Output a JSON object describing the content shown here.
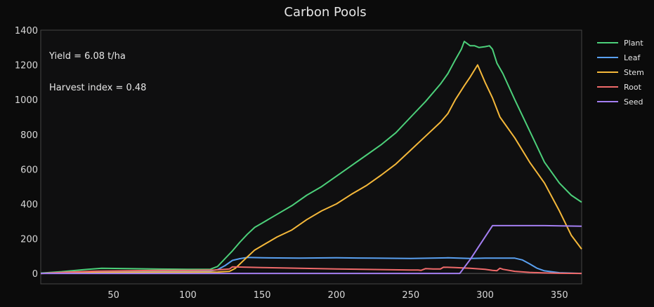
{
  "chart_data": {
    "type": "line",
    "title": "Carbon Pools",
    "xlabel": "",
    "ylabel": "",
    "xlim": [
      1,
      365
    ],
    "ylim": [
      -60,
      1400
    ],
    "xticks": [
      50,
      100,
      150,
      200,
      250,
      300,
      350
    ],
    "yticks": [
      0,
      200,
      400,
      600,
      800,
      1000,
      1200,
      1400
    ],
    "grid": false,
    "legend_position": "right",
    "annotations": [
      "Yield = 6.08 t/ha",
      "Harvest index = 0.48"
    ],
    "series": [
      {
        "name": "Plant",
        "color": "#4cd07a",
        "x": [
          1,
          15,
          30,
          42,
          60,
          80,
          100,
          115,
          120,
          125,
          130,
          135,
          140,
          145,
          150,
          160,
          170,
          180,
          190,
          200,
          210,
          220,
          230,
          240,
          250,
          260,
          270,
          275,
          280,
          284,
          286,
          290,
          293,
          296,
          300,
          303,
          305,
          308,
          312,
          320,
          330,
          340,
          350,
          358,
          365
        ],
        "y": [
          2,
          10,
          22,
          30,
          28,
          25,
          24,
          24,
          40,
          85,
          130,
          180,
          225,
          265,
          290,
          340,
          390,
          450,
          500,
          560,
          620,
          680,
          740,
          810,
          900,
          990,
          1090,
          1150,
          1230,
          1290,
          1335,
          1310,
          1310,
          1300,
          1305,
          1310,
          1290,
          1210,
          1150,
          1000,
          820,
          640,
          520,
          450,
          410
        ]
      },
      {
        "name": "Leaf",
        "color": "#5aa0f0",
        "x": [
          1,
          20,
          40,
          60,
          80,
          100,
          115,
          120,
          125,
          130,
          135,
          140,
          150,
          175,
          200,
          225,
          250,
          275,
          290,
          300,
          310,
          320,
          325,
          330,
          335,
          340,
          350,
          365
        ],
        "y": [
          0,
          4,
          8,
          10,
          12,
          13,
          14,
          22,
          45,
          75,
          85,
          92,
          90,
          88,
          90,
          88,
          86,
          90,
          86,
          88,
          88,
          88,
          78,
          55,
          30,
          15,
          4,
          0
        ]
      },
      {
        "name": "Stem",
        "color": "#f5b83a",
        "x": [
          1,
          20,
          40,
          60,
          80,
          100,
          120,
          128,
          132,
          140,
          145,
          150,
          160,
          170,
          180,
          190,
          200,
          210,
          220,
          230,
          240,
          250,
          260,
          270,
          275,
          280,
          286,
          290,
          295,
          300,
          305,
          310,
          320,
          330,
          340,
          350,
          358,
          365
        ],
        "y": [
          0,
          3,
          5,
          6,
          7,
          7,
          8,
          12,
          30,
          95,
          135,
          160,
          210,
          250,
          310,
          360,
          400,
          455,
          505,
          565,
          630,
          710,
          790,
          870,
          920,
          1000,
          1080,
          1130,
          1200,
          1100,
          1010,
          900,
          780,
          640,
          520,
          360,
          220,
          140
        ]
      },
      {
        "name": "Root",
        "color": "#ef6a6a",
        "x": [
          1,
          20,
          40,
          60,
          80,
          100,
          118,
          125,
          128,
          130,
          150,
          200,
          250,
          255,
          257,
          260,
          265,
          270,
          272,
          280,
          290,
          300,
          305,
          308,
          310,
          312,
          320,
          330,
          340,
          350,
          365
        ],
        "y": [
          0,
          8,
          14,
          16,
          18,
          18,
          20,
          24,
          26,
          38,
          34,
          26,
          20,
          20,
          18,
          28,
          26,
          26,
          36,
          34,
          30,
          24,
          18,
          16,
          30,
          24,
          12,
          6,
          3,
          1,
          0
        ]
      },
      {
        "name": "Seed",
        "color": "#a47ff2",
        "x": [
          1,
          100,
          200,
          283,
          290,
          300,
          305,
          310,
          320,
          340,
          365
        ],
        "y": [
          0,
          0,
          0,
          0,
          80,
          210,
          275,
          275,
          275,
          275,
          272
        ]
      }
    ]
  }
}
